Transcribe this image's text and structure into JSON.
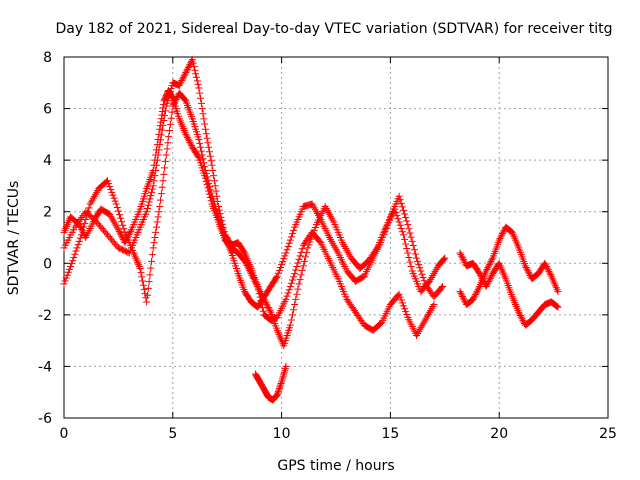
{
  "chart_data": {
    "type": "scatter",
    "title": "Day 182 of 2021, Sidereal Day-to-day VTEC variation (SDTVAR) for receiver titg",
    "xlabel": "GPS time / hours",
    "ylabel": "SDTVAR / TECUs",
    "xlim": [
      0,
      25
    ],
    "ylim": [
      -6,
      8
    ],
    "xticks": [
      0,
      5,
      10,
      15,
      20,
      25
    ],
    "yticks": [
      -6,
      -4,
      -2,
      0,
      2,
      4,
      6,
      8
    ],
    "grid": true,
    "marker": "+",
    "color": "#ff0000",
    "series": [
      {
        "name": "track-1",
        "x": [
          0,
          0.3,
          0.7,
          1.0,
          1.4,
          1.7,
          2.1,
          2.5,
          2.8,
          3.1,
          3.5,
          3.8,
          4.1,
          4.4,
          4.6,
          4.8,
          5.0,
          5.3,
          5.6,
          5.9,
          6.2,
          6.5,
          6.8,
          7.1,
          7.4,
          7.7,
          8.0,
          8.3,
          8.6,
          8.9,
          9.2,
          9.5,
          9.8,
          10.1,
          10.4,
          10.8,
          11.2,
          11.6,
          12.0,
          12.4,
          12.8,
          13.2,
          13.6,
          14.0,
          14.4,
          14.8,
          15.2,
          15.6,
          16.0,
          16.4,
          16.8,
          17.2,
          17.5
        ],
        "y": [
          1.2,
          1.8,
          1.5,
          1.0,
          1.7,
          2.1,
          1.9,
          1.3,
          0.8,
          1.3,
          2.1,
          2.9,
          3.6,
          5.2,
          6.3,
          6.7,
          6.4,
          5.6,
          5.0,
          4.5,
          4.1,
          3.3,
          2.3,
          1.6,
          0.9,
          0.6,
          0.4,
          0.1,
          -0.4,
          -0.9,
          -1.4,
          -1.9,
          -2.6,
          -3.2,
          -2.4,
          -0.8,
          0.6,
          1.5,
          2.2,
          1.6,
          0.8,
          0.2,
          -0.2,
          0.1,
          0.6,
          1.4,
          2.1,
          1.1,
          -0.3,
          -1.1,
          -0.7,
          -0.1,
          0.2
        ]
      },
      {
        "name": "track-2",
        "x": [
          0,
          0.4,
          0.8,
          1.2,
          1.6,
          2.0,
          2.4,
          2.8,
          3.2,
          3.5,
          3.8,
          4.1,
          4.4,
          4.7,
          5.0,
          5.3,
          5.6,
          5.9,
          6.2,
          6.5,
          6.8,
          7.1,
          7.4,
          7.7,
          8.0,
          8.3,
          8.6,
          8.9,
          9.2,
          9.5,
          9.8,
          10.2,
          10.6,
          11.0,
          11.4,
          11.8,
          12.2,
          12.6,
          13.0,
          13.4,
          13.8,
          14.2,
          14.6,
          15.0,
          15.4,
          15.8,
          16.2,
          16.6,
          17.0,
          17.4
        ],
        "y": [
          -0.8,
          0.1,
          1.1,
          2.3,
          2.9,
          3.2,
          2.3,
          1.2,
          0.4,
          -0.2,
          -1.5,
          0.6,
          2.2,
          4.2,
          6.1,
          6.6,
          6.3,
          5.6,
          4.8,
          3.6,
          2.6,
          1.8,
          1.0,
          0.4,
          -0.4,
          -1.1,
          -1.5,
          -1.7,
          -1.3,
          -0.9,
          -0.5,
          0.4,
          1.4,
          2.2,
          2.3,
          1.7,
          1.0,
          0.4,
          -0.3,
          -0.7,
          -0.5,
          0.2,
          0.9,
          1.8,
          2.6,
          1.5,
          0.2,
          -0.8,
          -1.3,
          -0.9
        ]
      },
      {
        "name": "track-3",
        "x": [
          0,
          0.5,
          1.0,
          1.5,
          2.0,
          2.5,
          3.0,
          3.4,
          3.8,
          4.1,
          4.4,
          4.7,
          5.0,
          5.3,
          5.6,
          5.9,
          6.2,
          6.5,
          6.8,
          7.1,
          7.4,
          7.7,
          8.0,
          8.3,
          8.6,
          8.9,
          9.2,
          9.5,
          9.8,
          10.2,
          10.6,
          11.0,
          11.4,
          11.8,
          12.2,
          12.6,
          13.0,
          13.4,
          13.8,
          14.2,
          14.6,
          15.0,
          15.4,
          15.8,
          16.2,
          16.6,
          17.0
        ],
        "y": [
          0.6,
          1.4,
          2.0,
          1.6,
          1.1,
          0.6,
          0.4,
          1.2,
          2.0,
          3.0,
          4.6,
          6.1,
          7.0,
          6.9,
          7.4,
          7.9,
          6.8,
          5.2,
          3.8,
          2.2,
          1.1,
          0.7,
          0.8,
          0.4,
          -0.2,
          -0.9,
          -2.0,
          -2.2,
          -2.1,
          -1.4,
          -0.4,
          0.7,
          1.2,
          0.8,
          0.1,
          -0.6,
          -1.4,
          -1.9,
          -2.4,
          -2.6,
          -2.3,
          -1.6,
          -1.2,
          -2.1,
          -2.8,
          -2.2,
          -1.6
        ]
      },
      {
        "name": "track-4",
        "x": [
          8.8,
          9.0,
          9.2,
          9.4,
          9.6,
          9.8,
          10.0,
          10.2
        ],
        "y": [
          -4.3,
          -4.6,
          -4.9,
          -5.2,
          -5.3,
          -5.1,
          -4.6,
          -4.0
        ]
      },
      {
        "name": "track-5",
        "x": [
          18.2,
          18.5,
          18.8,
          19.1,
          19.4,
          19.7,
          20.0,
          20.3,
          20.6,
          20.9,
          21.2,
          21.5,
          21.8,
          22.1,
          22.4,
          22.7
        ],
        "y": [
          -1.1,
          -1.6,
          -1.4,
          -0.9,
          -0.3,
          0.2,
          0.9,
          1.4,
          1.2,
          0.6,
          -0.1,
          -0.6,
          -0.4,
          0.0,
          -0.5,
          -1.1
        ]
      },
      {
        "name": "track-6",
        "x": [
          18.2,
          18.5,
          18.8,
          19.1,
          19.4,
          19.7,
          20.0,
          20.3,
          20.6,
          20.9,
          21.2,
          21.5,
          21.8,
          22.1,
          22.4,
          22.7
        ],
        "y": [
          0.4,
          -0.1,
          0.0,
          -0.4,
          -0.9,
          -0.4,
          0.0,
          -0.6,
          -1.3,
          -1.9,
          -2.4,
          -2.2,
          -1.9,
          -1.6,
          -1.5,
          -1.7
        ]
      }
    ]
  }
}
